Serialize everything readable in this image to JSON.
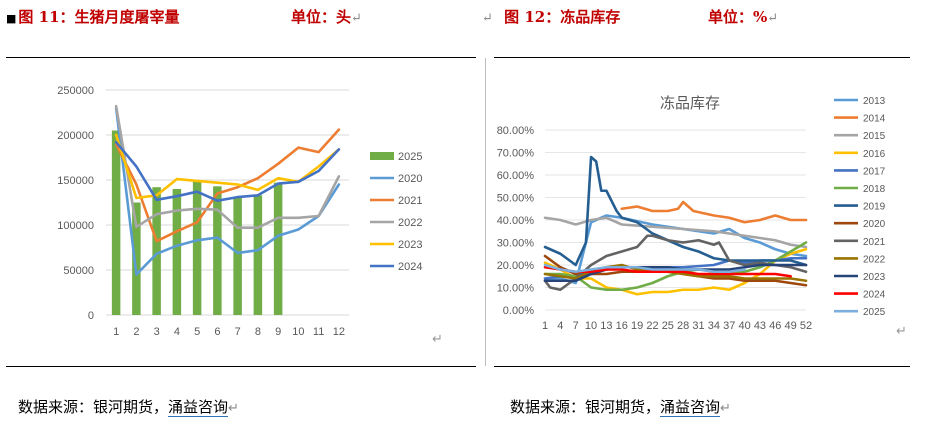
{
  "left_caption": {
    "marker": "■",
    "title": "图 11：生猪月度屠宰量",
    "unit": "单位：头",
    "mark": "↵"
  },
  "right_caption": {
    "lead_mark": "↵",
    "title": "图 12：冻品库存",
    "unit": "单位：%",
    "mark": "↵"
  },
  "left_source": {
    "prefix": "数据来源：银河期货，",
    "link": "涌益咨询",
    "mark": "↵"
  },
  "right_source": {
    "prefix": "数据来源：银河期货，",
    "link": "涌益咨询",
    "mark": "↵"
  },
  "return_mark": "↵",
  "colors": {
    "2013": "#5b9bd5",
    "2014": "#ed7d31",
    "2015": "#a5a5a5",
    "2016": "#ffc000",
    "2017": "#4472c4",
    "2018": "#70ad47",
    "2019": "#255e91",
    "2020": "#9e480e",
    "2021": "#636363",
    "2022": "#997300",
    "2023": "#264478",
    "2024": "#ff0000",
    "2025": "#7cafdd"
  },
  "chart_data": [
    {
      "type": "bar",
      "title": "",
      "categories": [
        "1",
        "2",
        "3",
        "4",
        "5",
        "6",
        "7",
        "8",
        "9",
        "10",
        "11",
        "12"
      ],
      "ylim": [
        0,
        250000
      ],
      "yticks": [
        "0",
        "50000",
        "100000",
        "150000",
        "200000",
        "250000"
      ],
      "legend_position": "right",
      "bar_series": {
        "name": "2025",
        "color": "#70ad47",
        "values": [
          205000,
          125000,
          142000,
          140000,
          148000,
          143000,
          130000,
          133000,
          147000,
          null,
          null,
          null
        ]
      },
      "line_series": [
        {
          "name": "2020",
          "color": "#5b9bd5",
          "values": [
            230000,
            45000,
            68000,
            77000,
            83000,
            86000,
            69000,
            72000,
            88000,
            95000,
            110000,
            145000
          ]
        },
        {
          "name": "2021",
          "color": "#ed7d31",
          "values": [
            190000,
            145000,
            82000,
            93000,
            103000,
            135000,
            142000,
            152000,
            168000,
            186000,
            181000,
            206000
          ]
        },
        {
          "name": "2022",
          "color": "#a5a5a5",
          "values": [
            232000,
            98000,
            112000,
            116000,
            118000,
            117000,
            97000,
            97000,
            108000,
            108000,
            110000,
            154000
          ]
        },
        {
          "name": "2023",
          "color": "#ffc000",
          "values": [
            200000,
            130000,
            133000,
            151000,
            149000,
            147000,
            145000,
            139000,
            152000,
            148000,
            165000,
            184000
          ]
        },
        {
          "name": "2024",
          "color": "#4472c4",
          "values": [
            192000,
            165000,
            128000,
            132000,
            137000,
            127000,
            131000,
            133000,
            146000,
            148000,
            160000,
            184000
          ]
        }
      ]
    },
    {
      "type": "line",
      "title": "冻品库存",
      "xticks": [
        "1",
        "4",
        "7",
        "10",
        "13",
        "16",
        "19",
        "22",
        "25",
        "28",
        "31",
        "34",
        "37",
        "40",
        "43",
        "46",
        "49",
        "52"
      ],
      "ylim": [
        0,
        80
      ],
      "yticks": [
        "0.00%",
        "10.00%",
        "20.00%",
        "30.00%",
        "40.00%",
        "50.00%",
        "60.00%",
        "70.00%",
        "80.00%"
      ],
      "legend_position": "right",
      "series": [
        {
          "name": "2013",
          "color": "#5b9bd5",
          "values": [
            [
              1,
              14
            ],
            [
              4,
              14
            ],
            [
              7,
              12
            ],
            [
              10,
              39
            ],
            [
              13,
              42
            ],
            [
              16,
              41
            ],
            [
              22,
              38
            ],
            [
              28,
              36
            ],
            [
              34,
              34
            ],
            [
              37,
              36
            ],
            [
              40,
              32
            ],
            [
              43,
              30
            ],
            [
              46,
              27
            ],
            [
              49,
              25
            ],
            [
              52,
              24
            ]
          ]
        },
        {
          "name": "2014",
          "color": "#ed7d31",
          "values": [
            [
              16,
              45
            ],
            [
              19,
              46
            ],
            [
              22,
              44
            ],
            [
              25,
              44
            ],
            [
              27,
              45
            ],
            [
              28,
              48
            ],
            [
              30,
              44
            ],
            [
              34,
              42
            ],
            [
              37,
              41
            ],
            [
              40,
              39
            ],
            [
              43,
              40
            ],
            [
              46,
              42
            ],
            [
              49,
              40
            ],
            [
              52,
              40
            ]
          ]
        },
        {
          "name": "2015",
          "color": "#a5a5a5",
          "values": [
            [
              1,
              41
            ],
            [
              4,
              40
            ],
            [
              7,
              38
            ],
            [
              10,
              40
            ],
            [
              13,
              41
            ],
            [
              16,
              38
            ],
            [
              22,
              37
            ],
            [
              28,
              36
            ],
            [
              34,
              35
            ],
            [
              37,
              34
            ],
            [
              40,
              33
            ],
            [
              43,
              32
            ],
            [
              46,
              31
            ],
            [
              49,
              29
            ],
            [
              52,
              28
            ]
          ]
        },
        {
          "name": "2016",
          "color": "#ffc000",
          "values": [
            [
              1,
              21
            ],
            [
              4,
              18
            ],
            [
              7,
              14
            ],
            [
              10,
              14
            ],
            [
              13,
              10
            ],
            [
              16,
              9
            ],
            [
              19,
              7
            ],
            [
              22,
              8
            ],
            [
              25,
              8
            ],
            [
              28,
              9
            ],
            [
              31,
              9
            ],
            [
              34,
              10
            ],
            [
              37,
              9
            ],
            [
              40,
              12
            ],
            [
              43,
              16
            ],
            [
              46,
              22
            ],
            [
              49,
              25
            ],
            [
              52,
              27
            ]
          ]
        },
        {
          "name": "2017",
          "color": "#4472c4",
          "values": [
            [
              1,
              14
            ],
            [
              4,
              15
            ],
            [
              7,
              15
            ],
            [
              10,
              17
            ],
            [
              13,
              18
            ],
            [
              16,
              19
            ],
            [
              22,
              19
            ],
            [
              28,
              19
            ],
            [
              34,
              20
            ],
            [
              37,
              22
            ],
            [
              40,
              21
            ],
            [
              43,
              22
            ],
            [
              46,
              22
            ],
            [
              49,
              23
            ],
            [
              52,
              23
            ]
          ]
        },
        {
          "name": "2018",
          "color": "#70ad47",
          "values": [
            [
              1,
              16
            ],
            [
              4,
              16
            ],
            [
              7,
              15
            ],
            [
              10,
              10
            ],
            [
              13,
              9
            ],
            [
              16,
              9
            ],
            [
              19,
              10
            ],
            [
              22,
              12
            ],
            [
              25,
              15
            ],
            [
              28,
              17
            ],
            [
              31,
              18
            ],
            [
              34,
              17
            ],
            [
              37,
              16
            ],
            [
              40,
              17
            ],
            [
              43,
              19
            ],
            [
              46,
              22
            ],
            [
              49,
              26
            ],
            [
              52,
              30
            ]
          ]
        },
        {
          "name": "2019",
          "color": "#255e91",
          "values": [
            [
              1,
              28
            ],
            [
              4,
              25
            ],
            [
              7,
              20
            ],
            [
              9,
              30
            ],
            [
              10,
              68
            ],
            [
              11,
              66
            ],
            [
              12,
              53
            ],
            [
              13,
              53
            ],
            [
              15,
              44
            ],
            [
              16,
              41
            ],
            [
              19,
              39
            ],
            [
              22,
              34
            ],
            [
              25,
              31
            ],
            [
              28,
              28
            ],
            [
              31,
              26
            ],
            [
              34,
              23
            ],
            [
              37,
              22
            ],
            [
              40,
              22
            ],
            [
              43,
              22
            ],
            [
              46,
              22
            ],
            [
              49,
              22
            ],
            [
              52,
              20
            ]
          ]
        },
        {
          "name": "2020",
          "color": "#9e480e",
          "values": [
            [
              1,
              24
            ],
            [
              4,
              19
            ],
            [
              7,
              16
            ],
            [
              10,
              16
            ],
            [
              13,
              16
            ],
            [
              16,
              17
            ],
            [
              19,
              17
            ],
            [
              22,
              17
            ],
            [
              25,
              17
            ],
            [
              28,
              16
            ],
            [
              31,
              15
            ],
            [
              34,
              14
            ],
            [
              37,
              14
            ],
            [
              40,
              13
            ],
            [
              43,
              13
            ],
            [
              46,
              13
            ],
            [
              49,
              12
            ],
            [
              52,
              11
            ]
          ]
        },
        {
          "name": "2021",
          "color": "#636363",
          "values": [
            [
              1,
              13
            ],
            [
              2,
              10
            ],
            [
              4,
              9
            ],
            [
              7,
              14
            ],
            [
              10,
              20
            ],
            [
              13,
              24
            ],
            [
              16,
              26
            ],
            [
              19,
              28
            ],
            [
              21,
              33
            ],
            [
              22,
              33
            ],
            [
              25,
              31
            ],
            [
              28,
              30
            ],
            [
              31,
              31
            ],
            [
              34,
              29
            ],
            [
              35,
              30
            ],
            [
              37,
              22
            ],
            [
              40,
              20
            ],
            [
              43,
              21
            ],
            [
              46,
              20
            ],
            [
              49,
              19
            ],
            [
              52,
              17
            ]
          ]
        },
        {
          "name": "2022",
          "color": "#997300",
          "values": [
            [
              1,
              16
            ],
            [
              4,
              15
            ],
            [
              7,
              14
            ],
            [
              10,
              17
            ],
            [
              13,
              19
            ],
            [
              16,
              20
            ],
            [
              19,
              18
            ],
            [
              22,
              17
            ],
            [
              25,
              17
            ],
            [
              28,
              16
            ],
            [
              31,
              15
            ],
            [
              34,
              15
            ],
            [
              37,
              15
            ],
            [
              40,
              14
            ],
            [
              43,
              14
            ],
            [
              46,
              14
            ],
            [
              49,
              14
            ],
            [
              52,
              13
            ]
          ]
        },
        {
          "name": "2023",
          "color": "#264478",
          "values": [
            [
              1,
              13
            ],
            [
              4,
              13
            ],
            [
              7,
              13
            ],
            [
              10,
              16
            ],
            [
              13,
              18
            ],
            [
              16,
              19
            ],
            [
              19,
              19
            ],
            [
              22,
              19
            ],
            [
              25,
              19
            ],
            [
              28,
              18
            ],
            [
              31,
              18
            ],
            [
              34,
              18
            ],
            [
              37,
              18
            ],
            [
              40,
              19
            ],
            [
              43,
              20
            ],
            [
              46,
              20
            ],
            [
              49,
              20
            ],
            [
              52,
              20
            ]
          ]
        },
        {
          "name": "2024",
          "color": "#ff0000",
          "values": [
            [
              1,
              19
            ],
            [
              4,
              18
            ],
            [
              7,
              17
            ],
            [
              10,
              17
            ],
            [
              13,
              18
            ],
            [
              16,
              18
            ],
            [
              19,
              17
            ],
            [
              22,
              17
            ],
            [
              25,
              17
            ],
            [
              28,
              17
            ],
            [
              31,
              16
            ],
            [
              34,
              16
            ],
            [
              37,
              16
            ],
            [
              40,
              16
            ],
            [
              43,
              16
            ],
            [
              46,
              16
            ],
            [
              49,
              15
            ]
          ]
        },
        {
          "name": "2025",
          "color": "#7cafdd",
          "values": [
            [
              1,
              20
            ],
            [
              4,
              18
            ],
            [
              7,
              17
            ],
            [
              10,
              18
            ],
            [
              13,
              19
            ],
            [
              16,
              19
            ],
            [
              19,
              19
            ],
            [
              22,
              18
            ],
            [
              25,
              18
            ],
            [
              28,
              18
            ],
            [
              31,
              18
            ],
            [
              34,
              17
            ],
            [
              37,
              17
            ],
            [
              40,
              18
            ]
          ]
        }
      ]
    }
  ]
}
